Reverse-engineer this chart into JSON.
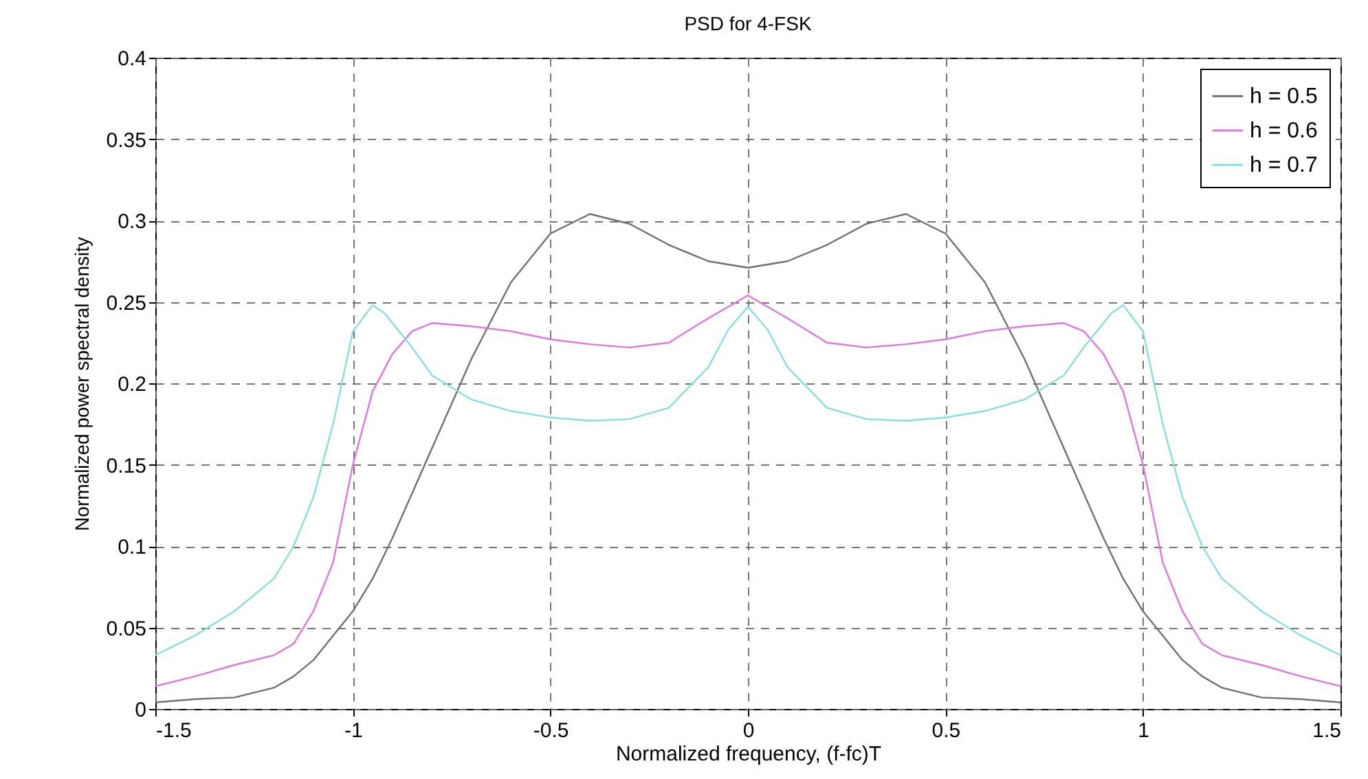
{
  "chart_data": {
    "type": "line",
    "title": "PSD for 4-FSK",
    "xlabel": "Normalized frequency, (f-fc)T",
    "ylabel": "Normalized power spectral density",
    "xlim": [
      -1.5,
      1.5
    ],
    "xticks": [
      -1.5,
      -1,
      -0.5,
      0,
      0.5,
      1,
      1.5
    ],
    "ylim": [
      0,
      0.4
    ],
    "yticks": [
      0,
      0.05,
      0.1,
      0.15,
      0.2,
      0.25,
      0.3,
      0.35,
      0.4
    ],
    "grid": true,
    "legend": "top right",
    "line_style": "solid",
    "series": [
      {
        "name": "h = 0.5",
        "color": "#707070",
        "x": [
          -1.5,
          -1.4,
          -1.3,
          -1.2,
          -1.15,
          -1.1,
          -1.05,
          -1,
          -0.95,
          -0.9,
          -0.8,
          -0.7,
          -0.6,
          -0.5,
          -0.4,
          -0.3,
          -0.2,
          -0.1,
          0,
          0.1,
          0.2,
          0.3,
          0.4,
          0.5,
          0.6,
          0.7,
          0.8,
          0.9,
          0.95,
          1,
          1.05,
          1.1,
          1.15,
          1.2,
          1.3,
          1.4,
          1.5
        ],
        "values": [
          0.004,
          0.006,
          0.007,
          0.013,
          0.02,
          0.03,
          0.045,
          0.06,
          0.08,
          0.105,
          0.16,
          0.215,
          0.262,
          0.292,
          0.304,
          0.298,
          0.285,
          0.275,
          0.271,
          0.275,
          0.285,
          0.298,
          0.304,
          0.292,
          0.262,
          0.215,
          0.16,
          0.105,
          0.08,
          0.06,
          0.045,
          0.03,
          0.02,
          0.013,
          0.007,
          0.006,
          0.004
        ]
      },
      {
        "name": "h = 0.6",
        "color": "#dd77dd",
        "x": [
          -1.5,
          -1.4,
          -1.3,
          -1.2,
          -1.15,
          -1.1,
          -1.05,
          -1,
          -0.95,
          -0.9,
          -0.85,
          -0.8,
          -0.7,
          -0.6,
          -0.5,
          -0.4,
          -0.3,
          -0.2,
          -0.1,
          0,
          0.1,
          0.2,
          0.3,
          0.4,
          0.5,
          0.6,
          0.7,
          0.8,
          0.85,
          0.9,
          0.95,
          1,
          1.05,
          1.1,
          1.15,
          1.2,
          1.3,
          1.4,
          1.5
        ],
        "values": [
          0.014,
          0.02,
          0.027,
          0.033,
          0.04,
          0.06,
          0.09,
          0.15,
          0.195,
          0.218,
          0.232,
          0.237,
          0.235,
          0.232,
          0.227,
          0.224,
          0.222,
          0.225,
          0.24,
          0.254,
          0.24,
          0.225,
          0.222,
          0.224,
          0.227,
          0.232,
          0.235,
          0.237,
          0.232,
          0.218,
          0.195,
          0.15,
          0.09,
          0.06,
          0.04,
          0.033,
          0.027,
          0.02,
          0.014
        ]
      },
      {
        "name": "h = 0.7",
        "color": "#88dddd",
        "x": [
          -1.5,
          -1.4,
          -1.3,
          -1.2,
          -1.15,
          -1.1,
          -1.05,
          -1,
          -0.95,
          -0.92,
          -0.85,
          -0.8,
          -0.7,
          -0.6,
          -0.5,
          -0.4,
          -0.3,
          -0.2,
          -0.1,
          -0.05,
          0,
          0.05,
          0.1,
          0.2,
          0.3,
          0.4,
          0.5,
          0.6,
          0.7,
          0.8,
          0.85,
          0.92,
          0.95,
          1,
          1.05,
          1.1,
          1.15,
          1.2,
          1.3,
          1.4,
          1.5
        ],
        "values": [
          0.033,
          0.045,
          0.06,
          0.08,
          0.1,
          0.13,
          0.175,
          0.232,
          0.248,
          0.243,
          0.222,
          0.205,
          0.19,
          0.183,
          0.179,
          0.177,
          0.178,
          0.185,
          0.21,
          0.233,
          0.247,
          0.233,
          0.21,
          0.185,
          0.178,
          0.177,
          0.179,
          0.183,
          0.19,
          0.205,
          0.222,
          0.243,
          0.248,
          0.232,
          0.175,
          0.13,
          0.1,
          0.08,
          0.06,
          0.045,
          0.033
        ]
      }
    ]
  }
}
